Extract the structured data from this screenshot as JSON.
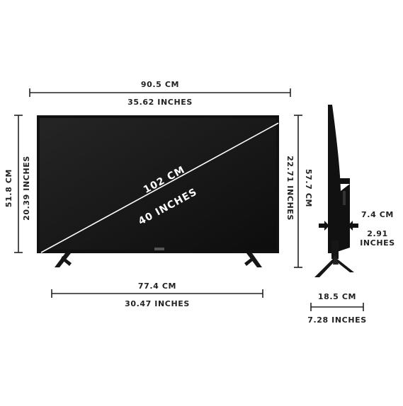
{
  "dimensions": {
    "width_cm": "90.5 CM",
    "width_in": "35.62 INCHES",
    "height_cm": "51.8 CM",
    "height_in": "20.39 INCHES",
    "diagonal_cm": "102 CM",
    "diagonal_in": "40 INCHES",
    "stand_span_cm": "77.4 CM",
    "stand_span_in": "30.47 INCHES",
    "total_height_in": "22.71 INCHES",
    "total_height_cm": "57.7 CM",
    "depth_cm": "7.4 CM",
    "depth_in_value": "2.91",
    "depth_in_unit": "INCHES",
    "stand_depth_cm": "18.5 CM",
    "stand_depth_in": "7.28 INCHES"
  },
  "colors": {
    "tv_body": "#111111",
    "screen": "#1c1c1c",
    "line": "#222222",
    "background": "#ffffff"
  },
  "icons": {
    "front_view": "tv-front-icon",
    "side_view": "tv-side-icon"
  }
}
